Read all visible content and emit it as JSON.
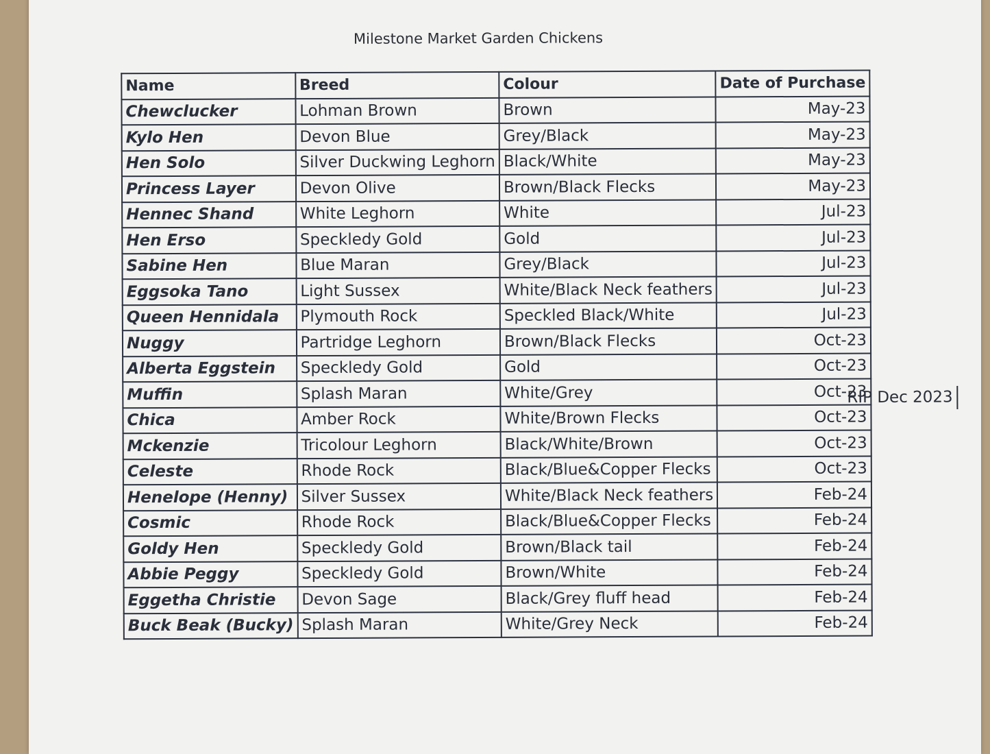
{
  "title": "Milestone Market Garden Chickens",
  "columns": [
    "Name",
    "Breed",
    "Colour",
    "Date of Purchase"
  ],
  "rows": [
    [
      "Chewclucker",
      "Lohman Brown",
      "Brown",
      "May-23"
    ],
    [
      "Kylo Hen",
      "Devon Blue",
      "Grey/Black",
      "May-23"
    ],
    [
      "Hen Solo",
      "Silver Duckwing Leghorn",
      "Black/White",
      "May-23"
    ],
    [
      "Princess Layer",
      "Devon Olive",
      "Brown/Black Flecks",
      "May-23"
    ],
    [
      "Hennec Shand",
      "White Leghorn",
      "White",
      "Jul-23"
    ],
    [
      "Hen Erso",
      "Speckledy Gold",
      "Gold",
      "Jul-23"
    ],
    [
      "Sabine Hen",
      "Blue Maran",
      "Grey/Black",
      "Jul-23"
    ],
    [
      "Eggsoka Tano",
      "Light Sussex",
      "White/Black Neck feathers",
      "Jul-23"
    ],
    [
      "Queen Hennidala",
      "Plymouth Rock",
      "Speckled Black/White",
      "Jul-23"
    ],
    [
      "Nuggy",
      "Partridge Leghorn",
      "Brown/Black Flecks",
      "Oct-23"
    ],
    [
      "Alberta Eggstein",
      "Speckledy Gold",
      "Gold",
      "Oct-23"
    ],
    [
      "Muffin",
      "Splash Maran",
      "White/Grey",
      "Oct-23"
    ],
    [
      "Chica",
      "Amber Rock",
      "White/Brown Flecks",
      "Oct-23"
    ],
    [
      "Mckenzie",
      "Tricolour Leghorn",
      "Black/White/Brown",
      "Oct-23"
    ],
    [
      "Celeste",
      "Rhode Rock",
      "Black/Blue&Copper Flecks",
      "Oct-23"
    ],
    [
      "Henelope (Henny)",
      "Silver Sussex",
      "White/Black Neck feathers",
      "Feb-24"
    ],
    [
      "Cosmic",
      "Rhode Rock",
      "Black/Blue&Copper Flecks",
      "Feb-24"
    ],
    [
      "Goldy Hen",
      "Speckledy Gold",
      "Brown/Black tail",
      "Feb-24"
    ],
    [
      "Abbie Peggy",
      "Speckledy Gold",
      "Brown/White",
      "Feb-24"
    ],
    [
      "Eggetha Christie",
      "Devon Sage",
      "Black/Grey fluff head",
      "Feb-24"
    ],
    [
      "Buck Beak (Bucky)",
      "Splash Maran",
      "White/Grey Neck",
      "Feb-24"
    ]
  ],
  "note": "RIP Dec 2023"
}
